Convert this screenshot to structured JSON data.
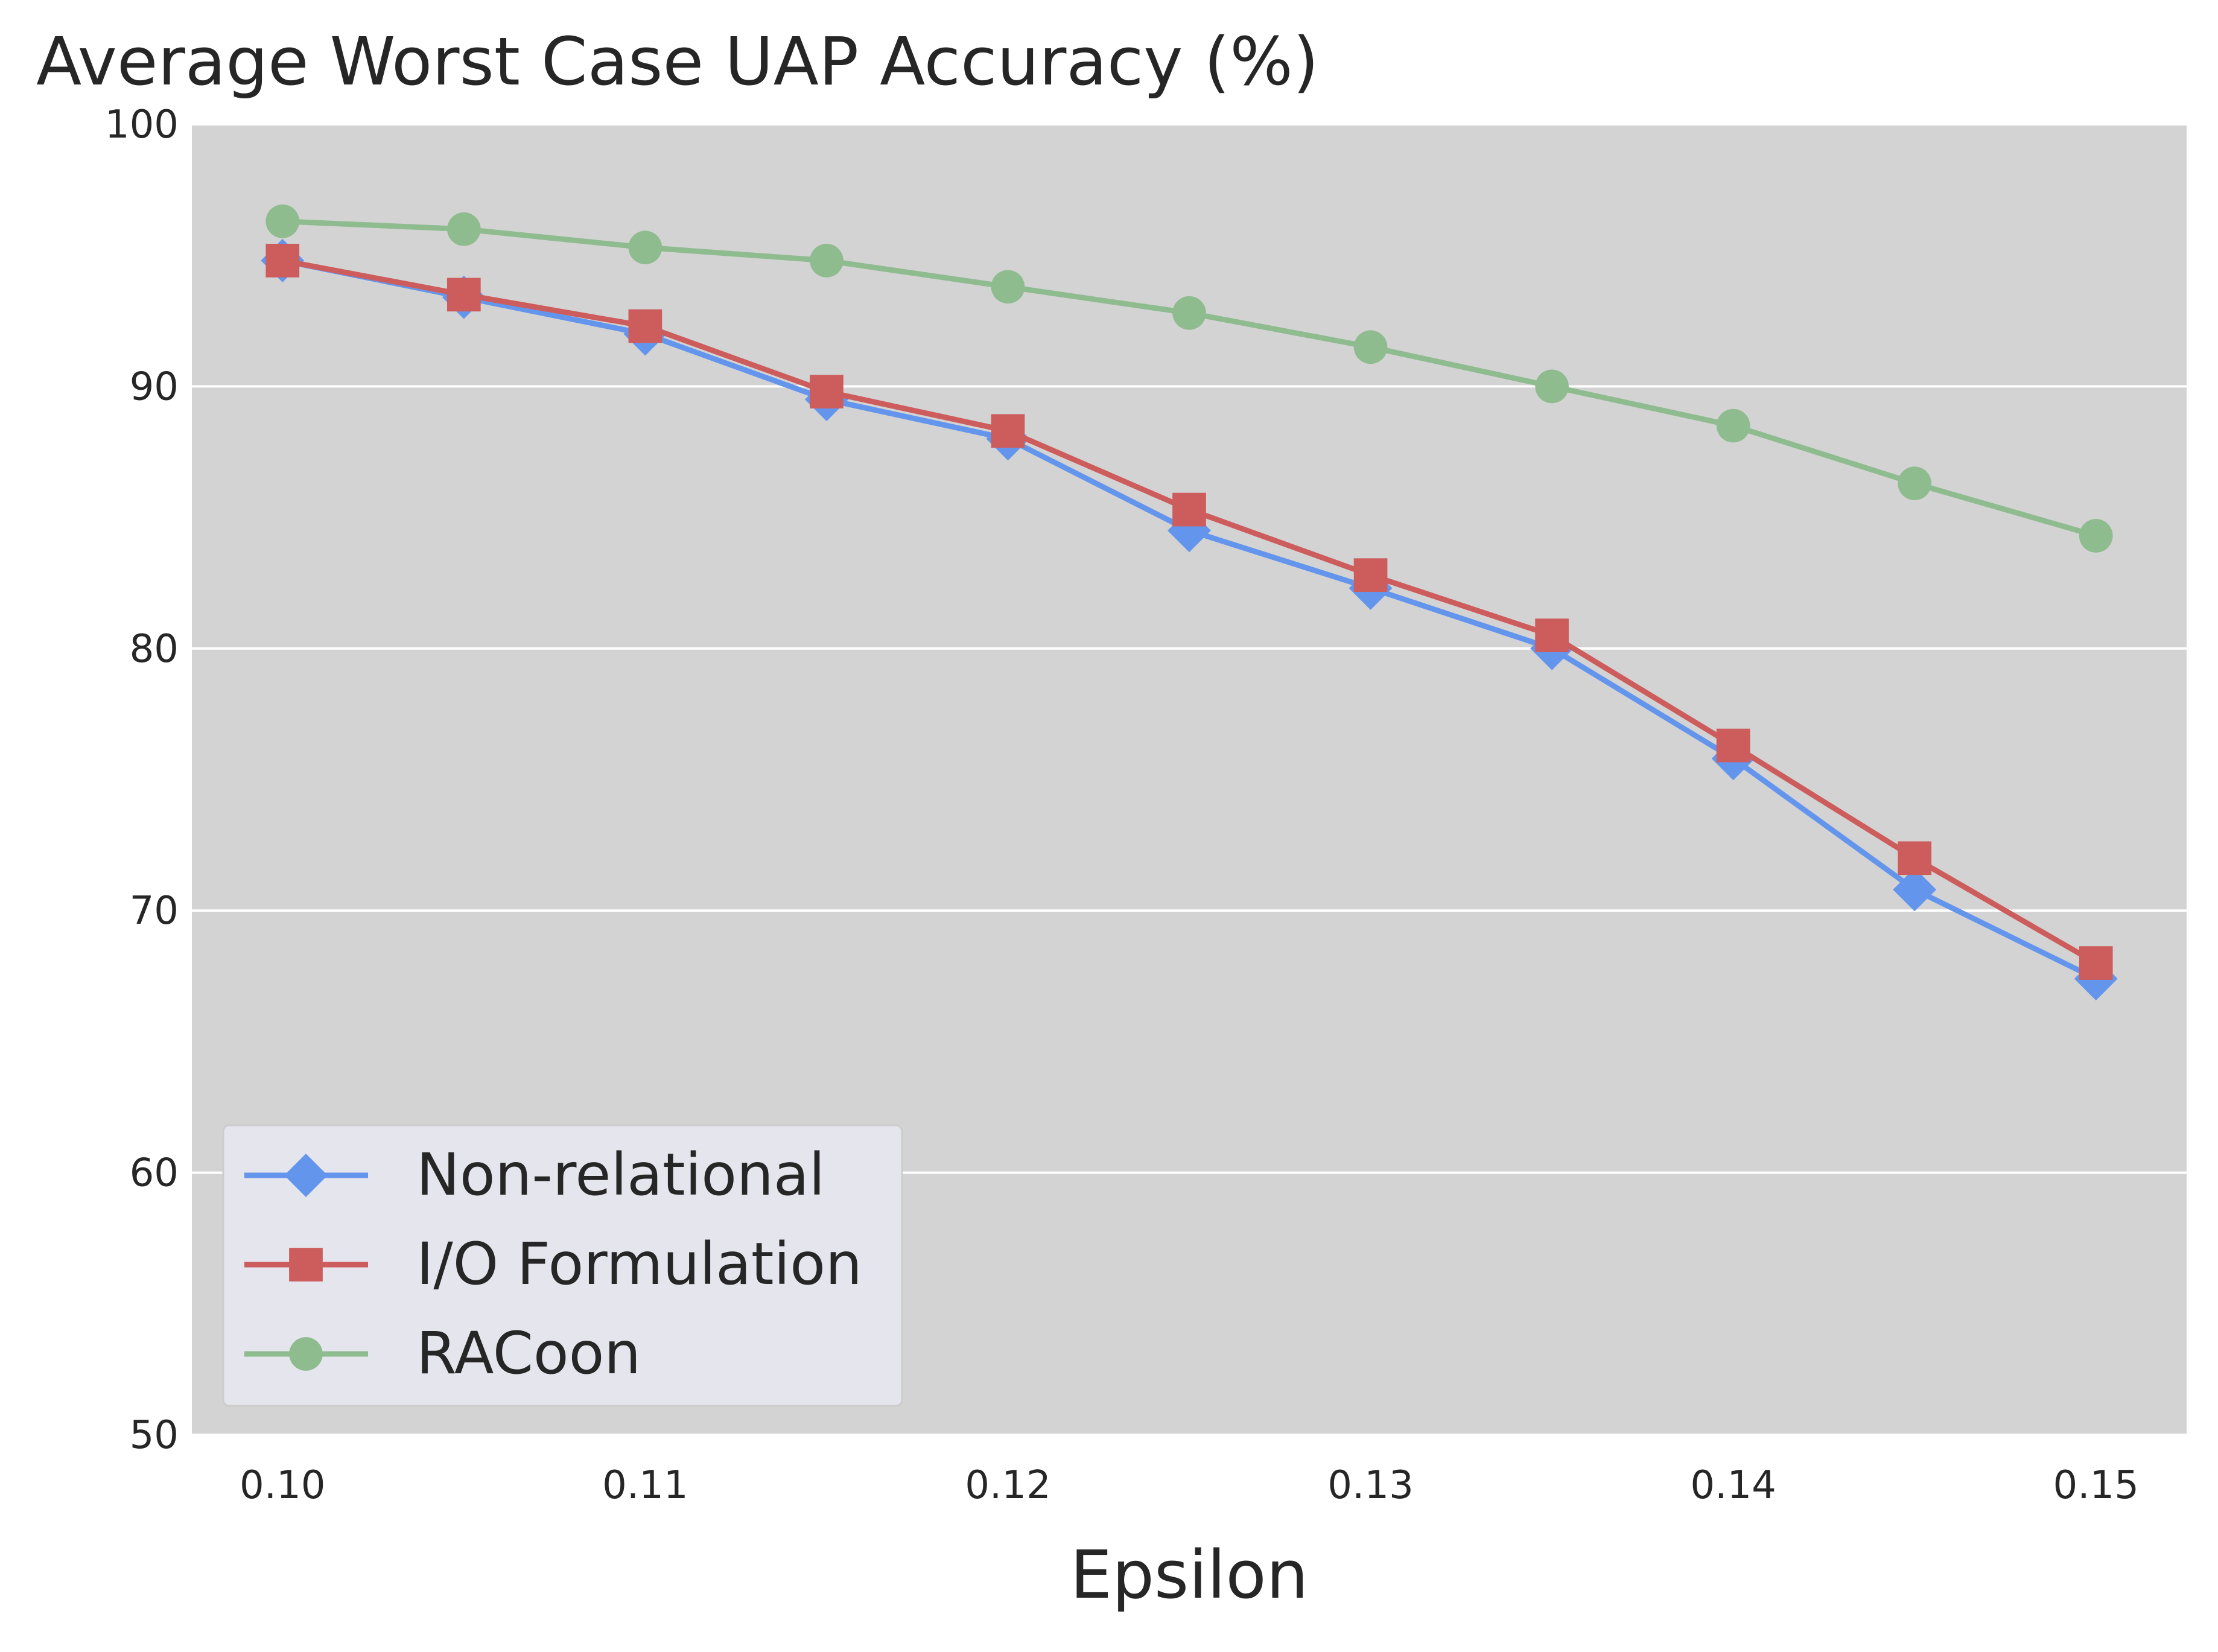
{
  "chart_data": {
    "type": "line",
    "title": "Average Worst Case UAP Accuracy (%)",
    "xlabel": "Epsilon",
    "ylabel": "",
    "x": [
      0.1,
      0.105,
      0.11,
      0.115,
      0.12,
      0.125,
      0.13,
      0.135,
      0.14,
      0.145,
      0.15
    ],
    "xlim": [
      0.0975,
      0.1525
    ],
    "ylim": [
      50,
      100
    ],
    "x_ticks": [
      "0.10",
      "0.11",
      "0.12",
      "0.13",
      "0.14",
      "0.15"
    ],
    "y_ticks": [
      "50",
      "60",
      "70",
      "80",
      "90",
      "100"
    ],
    "grid": "horizontal",
    "background": "#d3d3d3",
    "legend_position": "lower-left",
    "series": [
      {
        "name": "Non-relational",
        "marker": "diamond",
        "color": "#6495ed",
        "values": [
          94.8,
          93.4,
          92.0,
          89.5,
          88.0,
          84.5,
          82.3,
          80.0,
          75.8,
          70.8,
          67.4
        ]
      },
      {
        "name": "I/O Formulation",
        "marker": "square",
        "color": "#cd5c5c",
        "values": [
          94.8,
          93.5,
          92.3,
          89.8,
          88.3,
          85.3,
          82.8,
          80.5,
          76.3,
          72.0,
          68.0
        ]
      },
      {
        "name": "RACoon",
        "marker": "circle",
        "color": "#8fbc8f",
        "values": [
          96.3,
          96.0,
          95.3,
          94.8,
          93.8,
          92.8,
          91.5,
          90.0,
          88.5,
          86.3,
          84.3
        ]
      }
    ]
  }
}
